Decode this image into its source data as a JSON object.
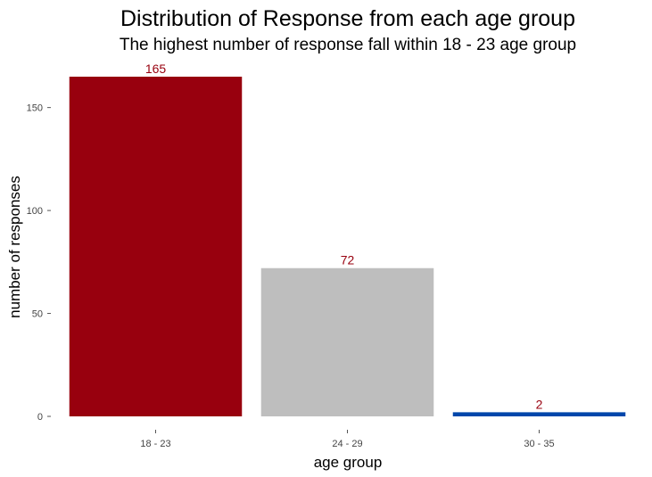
{
  "chart_data": {
    "type": "bar",
    "title": "Distribution of Response from each age group",
    "subtitle": "The highest number of response fall within 18 - 23 age group",
    "xlabel": "age group",
    "ylabel": "number of responses",
    "categories": [
      "18 - 23",
      "24 - 29",
      "30 - 35"
    ],
    "values": [
      165,
      72,
      2
    ],
    "value_labels": [
      "165",
      "72",
      "2"
    ],
    "bar_colors": [
      "#98000E",
      "#BEBEBE",
      "#0047AB"
    ],
    "label_color": "#98000E",
    "ylim": [
      0,
      170
    ],
    "yticks": [
      0,
      50,
      100,
      150
    ],
    "ytick_labels": [
      "0",
      "50",
      "100",
      "150"
    ],
    "grid": false,
    "legend": "none"
  }
}
